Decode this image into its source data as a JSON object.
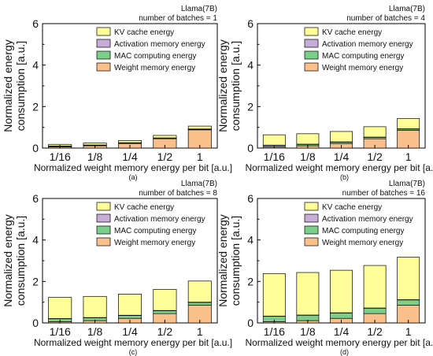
{
  "colors": {
    "kv": "#ffff99",
    "activation": "#c7aed8",
    "mac": "#7ccf8b",
    "weight": "#f9c08c",
    "axis": "#000000"
  },
  "shared": {
    "xlabel": "Normalized weight memory energy per bit [a.u.]",
    "ylabel_line1": "Normalized energy",
    "ylabel_line2": "consumption [a.u.]"
  },
  "chart_data": [
    {
      "type": "bar",
      "stacked": true,
      "panel_label": "(a)",
      "model_label": "Llama(7B)",
      "batch_label": "number of batches = 1",
      "categories": [
        "1/16",
        "1/8",
        "1/4",
        "1/2",
        "1"
      ],
      "yticks": [
        "0",
        "2",
        "4",
        "6"
      ],
      "ylim": [
        0,
        6
      ],
      "legend_position": "top-right",
      "series": [
        {
          "name": "Weight memory energy",
          "color": "#f9c08c",
          "values": [
            0.06,
            0.11,
            0.22,
            0.45,
            0.88
          ]
        },
        {
          "name": "MAC computing energy",
          "color": "#7ccf8b",
          "values": [
            0.03,
            0.03,
            0.03,
            0.03,
            0.03
          ]
        },
        {
          "name": "Activation memory energy",
          "color": "#c7aed8",
          "values": [
            0.01,
            0.01,
            0.01,
            0.01,
            0.01
          ]
        },
        {
          "name": "KV cache energy",
          "color": "#ffff99",
          "values": [
            0.08,
            0.09,
            0.1,
            0.12,
            0.14
          ]
        }
      ]
    },
    {
      "type": "bar",
      "stacked": true,
      "panel_label": "(b)",
      "model_label": "Llama(7B)",
      "batch_label": "number of batches = 4",
      "categories": [
        "1/16",
        "1/8",
        "1/4",
        "1/2",
        "1"
      ],
      "yticks": [
        "0",
        "2",
        "4",
        "6"
      ],
      "ylim": [
        0,
        6
      ],
      "legend_position": "top-right",
      "series": [
        {
          "name": "Weight memory energy",
          "color": "#f9c08c",
          "values": [
            0.06,
            0.11,
            0.22,
            0.45,
            0.85
          ]
        },
        {
          "name": "MAC computing energy",
          "color": "#7ccf8b",
          "values": [
            0.07,
            0.07,
            0.07,
            0.07,
            0.07
          ]
        },
        {
          "name": "Activation memory energy",
          "color": "#c7aed8",
          "values": [
            0.01,
            0.01,
            0.01,
            0.01,
            0.01
          ]
        },
        {
          "name": "KV cache energy",
          "color": "#ffff99",
          "values": [
            0.5,
            0.5,
            0.5,
            0.5,
            0.5
          ]
        }
      ]
    },
    {
      "type": "bar",
      "stacked": true,
      "panel_label": "(c)",
      "model_label": "Llama(7B)",
      "batch_label": "number of batches = 8",
      "categories": [
        "1/16",
        "1/8",
        "1/4",
        "1/2",
        "1"
      ],
      "yticks": [
        "0",
        "2",
        "4",
        "6"
      ],
      "ylim": [
        0,
        6
      ],
      "legend_position": "top-right",
      "series": [
        {
          "name": "Weight memory energy",
          "color": "#f9c08c",
          "values": [
            0.06,
            0.11,
            0.22,
            0.45,
            0.85
          ]
        },
        {
          "name": "MAC computing energy",
          "color": "#7ccf8b",
          "values": [
            0.14,
            0.14,
            0.14,
            0.14,
            0.14
          ]
        },
        {
          "name": "Activation memory energy",
          "color": "#c7aed8",
          "values": [
            0.01,
            0.01,
            0.01,
            0.01,
            0.01
          ]
        },
        {
          "name": "KV cache energy",
          "color": "#ffff99",
          "values": [
            1.02,
            1.02,
            1.02,
            1.02,
            1.02
          ]
        }
      ]
    },
    {
      "type": "bar",
      "stacked": true,
      "panel_label": "(d)",
      "model_label": "Llama(7B)",
      "batch_label": "number of batches = 16",
      "categories": [
        "1/16",
        "1/8",
        "1/4",
        "1/2",
        "1"
      ],
      "yticks": [
        "0",
        "2",
        "4",
        "6"
      ],
      "ylim": [
        0,
        6
      ],
      "legend_position": "top-right",
      "series": [
        {
          "name": "Weight memory energy",
          "color": "#f9c08c",
          "values": [
            0.06,
            0.11,
            0.22,
            0.45,
            0.85
          ]
        },
        {
          "name": "MAC computing energy",
          "color": "#7ccf8b",
          "values": [
            0.26,
            0.26,
            0.26,
            0.26,
            0.26
          ]
        },
        {
          "name": "Activation memory energy",
          "color": "#c7aed8",
          "values": [
            0.01,
            0.01,
            0.01,
            0.01,
            0.01
          ]
        },
        {
          "name": "KV cache energy",
          "color": "#ffff99",
          "values": [
            2.05,
            2.05,
            2.05,
            2.05,
            2.05
          ]
        }
      ]
    }
  ]
}
